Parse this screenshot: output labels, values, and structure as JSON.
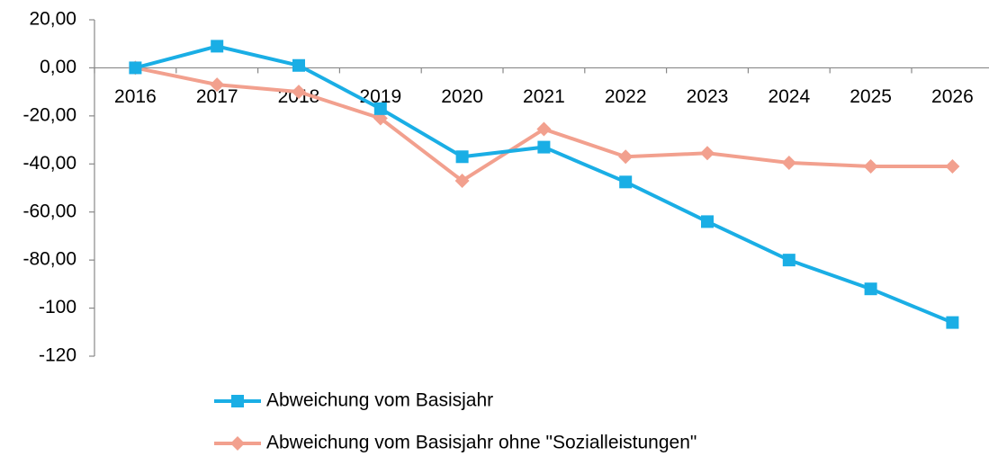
{
  "chart_data": {
    "type": "line",
    "categories": [
      "2016",
      "2017",
      "2018",
      "2019",
      "2020",
      "2021",
      "2022",
      "2023",
      "2024",
      "2025",
      "2026"
    ],
    "series": [
      {
        "name": "Abweichung vom Basisjahr",
        "color": "#1aaee5",
        "marker": "square",
        "values": [
          0,
          9,
          1,
          -17,
          -37,
          -33,
          -47.5,
          -64,
          -80,
          -92,
          -106
        ]
      },
      {
        "name": "Abweichung vom Basisjahr ohne \"Sozialleistungen\"",
        "color": "#f2a08e",
        "marker": "diamond",
        "values": [
          0,
          -7,
          -10,
          -21,
          -47,
          -25.5,
          -37,
          -35.5,
          -39.5,
          -41,
          -41
        ]
      }
    ],
    "ylim": [
      -120,
      20
    ],
    "yticks": [
      {
        "value": 20,
        "label": "20,00"
      },
      {
        "value": 0,
        "label": "0,00"
      },
      {
        "value": -20,
        "label": "-20,00"
      },
      {
        "value": -40,
        "label": "-40,00"
      },
      {
        "value": -60,
        "label": "-60,00"
      },
      {
        "value": -80,
        "label": "-80,00"
      },
      -100,
      -120
    ],
    "grid": false,
    "legend": "bottom"
  }
}
